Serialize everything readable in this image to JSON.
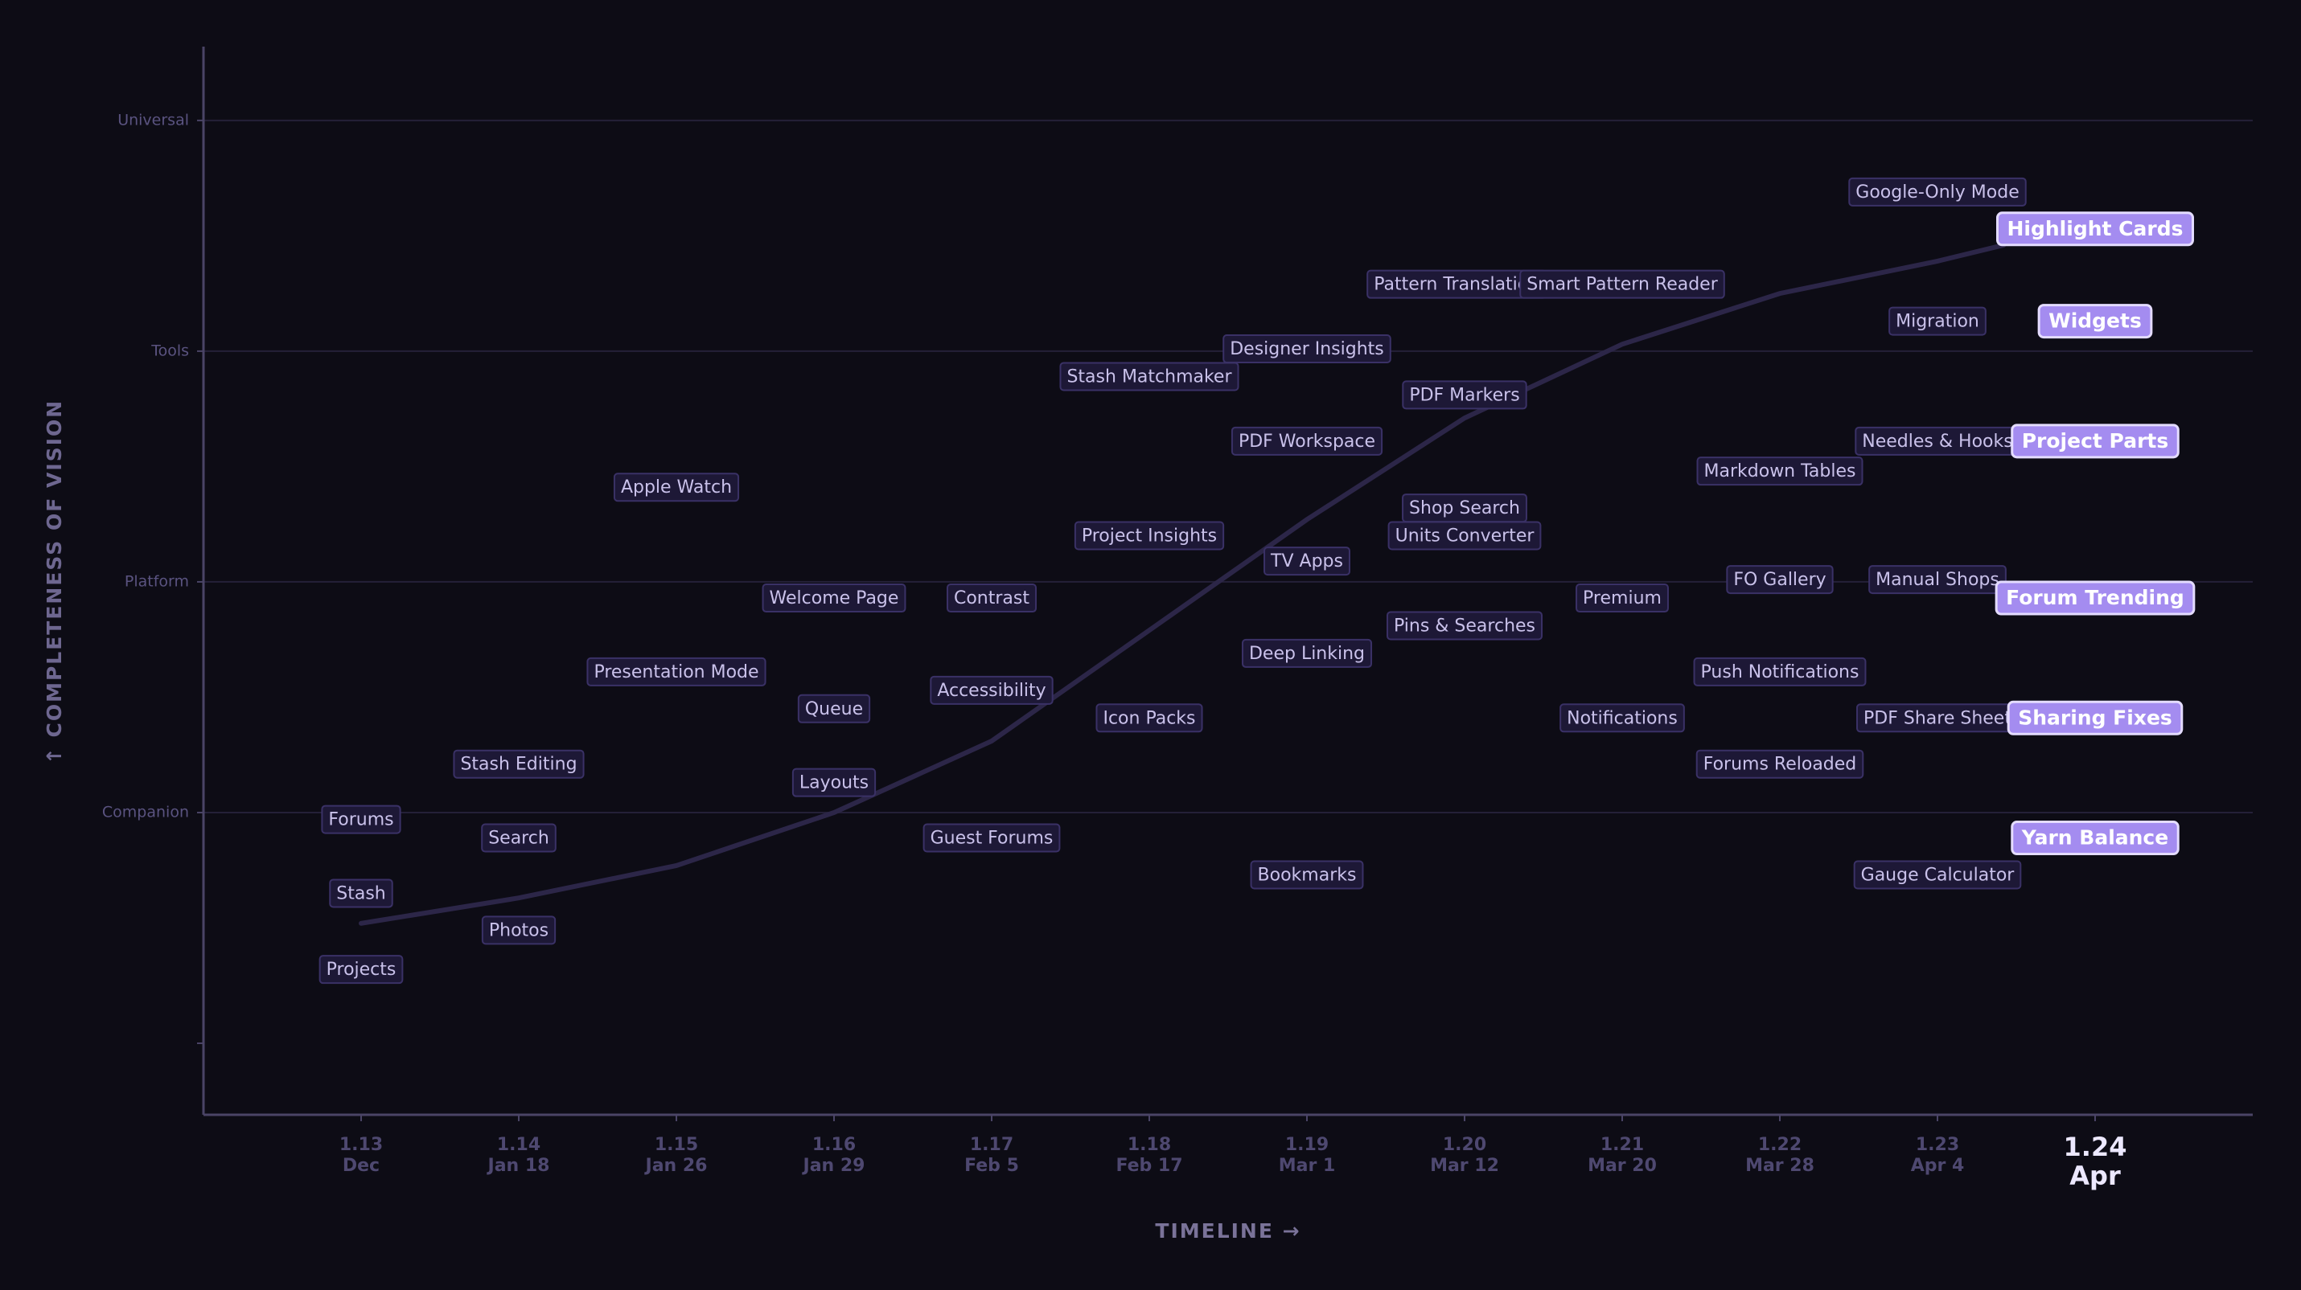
{
  "chart_data": {
    "type": "scatter",
    "x_label": "TIMELINE →",
    "y_label": "↑  COMPLETENESS  OF  VISION",
    "xlim": [
      -1,
      12
    ],
    "ylim": [
      -0.31,
      4.32
    ],
    "xticks": [
      {
        "value": 0,
        "label": "1.13"
      },
      {
        "value": 1,
        "label": "1.14"
      },
      {
        "value": 2,
        "label": "1.15"
      },
      {
        "value": 3,
        "label": "1.16"
      },
      {
        "value": 4,
        "label": "1.17"
      },
      {
        "value": 5,
        "label": "1.18"
      },
      {
        "value": 6,
        "label": "1.19"
      },
      {
        "value": 7,
        "label": "1.20"
      },
      {
        "value": 8,
        "label": "1.21"
      },
      {
        "value": 9,
        "label": "1.22"
      },
      {
        "value": 10,
        "label": "1.23"
      },
      {
        "value": 11,
        "label": "1.24"
      }
    ],
    "xtick_dates": [
      "Dec",
      "Jan 18",
      "Jan 26",
      "Jan 29",
      "Feb 5",
      "Feb 17",
      "Mar 1",
      "Mar 12",
      "Mar 20",
      "Mar 28",
      "Apr 4",
      "Apr"
    ],
    "current_release_index": 11,
    "yticks": [
      {
        "value": 0,
        "label": null
      },
      {
        "value": 1,
        "label": "Companion"
      },
      {
        "value": 2,
        "label": "Platform"
      },
      {
        "value": 3,
        "label": "Tools"
      },
      {
        "value": 4,
        "label": "Universal"
      }
    ],
    "grid": true,
    "trend": {
      "x": [
        0,
        1,
        2,
        3,
        4,
        5,
        6,
        7,
        8,
        9,
        10,
        10.42
      ],
      "y": [
        0.52,
        0.63,
        0.77,
        1.0,
        1.31,
        1.79,
        2.27,
        2.71,
        3.03,
        3.25,
        3.39,
        3.46
      ]
    },
    "points": [
      {
        "label": "Google-Only Mode",
        "x": 10,
        "y": 3.69
      },
      {
        "label": "Highlight Cards",
        "x": 11,
        "y": 3.53,
        "highlight": true
      },
      {
        "label": "Pattern Translation",
        "x": 6.95,
        "y": 3.29
      },
      {
        "label": "Smart Pattern Reader",
        "x": 8,
        "y": 3.29
      },
      {
        "label": "Migration",
        "x": 10,
        "y": 3.13
      },
      {
        "label": "Widgets",
        "x": 11,
        "y": 3.13,
        "highlight": true
      },
      {
        "label": "Designer Insights",
        "x": 6,
        "y": 3.01
      },
      {
        "label": "Stash Matchmaker",
        "x": 5,
        "y": 2.89
      },
      {
        "label": "PDF Markers",
        "x": 7,
        "y": 2.81
      },
      {
        "label": "PDF Workspace",
        "x": 6,
        "y": 2.61
      },
      {
        "label": "Needles & Hooks",
        "x": 10,
        "y": 2.61
      },
      {
        "label": "Project Parts",
        "x": 11,
        "y": 2.61,
        "highlight": true
      },
      {
        "label": "Markdown Tables",
        "x": 9,
        "y": 2.48
      },
      {
        "label": "Apple Watch",
        "x": 2,
        "y": 2.41
      },
      {
        "label": "Shop Search",
        "x": 7,
        "y": 2.32
      },
      {
        "label": "Project Insights",
        "x": 5,
        "y": 2.2
      },
      {
        "label": "Units Converter",
        "x": 7,
        "y": 2.2
      },
      {
        "label": "TV Apps",
        "x": 6,
        "y": 2.09
      },
      {
        "label": "FO Gallery",
        "x": 9,
        "y": 2.01
      },
      {
        "label": "Manual Shops",
        "x": 10,
        "y": 2.01
      },
      {
        "label": "Welcome Page",
        "x": 3,
        "y": 1.93
      },
      {
        "label": "Contrast",
        "x": 4,
        "y": 1.93
      },
      {
        "label": "Premium",
        "x": 8,
        "y": 1.93
      },
      {
        "label": "Forum Trending",
        "x": 11,
        "y": 1.93,
        "highlight": true
      },
      {
        "label": "Pins & Searches",
        "x": 7,
        "y": 1.81
      },
      {
        "label": "Deep Linking",
        "x": 6,
        "y": 1.69
      },
      {
        "label": "Presentation Mode",
        "x": 2,
        "y": 1.61
      },
      {
        "label": "Push Notifications",
        "x": 9,
        "y": 1.61
      },
      {
        "label": "Accessibility",
        "x": 4,
        "y": 1.53
      },
      {
        "label": "Queue",
        "x": 3,
        "y": 1.45
      },
      {
        "label": "Icon Packs",
        "x": 5,
        "y": 1.41
      },
      {
        "label": "Notifications",
        "x": 8,
        "y": 1.41
      },
      {
        "label": "PDF Share Sheet",
        "x": 10,
        "y": 1.41
      },
      {
        "label": "Sharing Fixes",
        "x": 11,
        "y": 1.41,
        "highlight": true
      },
      {
        "label": "Stash Editing",
        "x": 1,
        "y": 1.21
      },
      {
        "label": "Forums Reloaded",
        "x": 9,
        "y": 1.21
      },
      {
        "label": "Layouts",
        "x": 3,
        "y": 1.13
      },
      {
        "label": "Forums",
        "x": 0,
        "y": 0.97
      },
      {
        "label": "Search",
        "x": 1,
        "y": 0.89
      },
      {
        "label": "Guest Forums",
        "x": 4,
        "y": 0.89
      },
      {
        "label": "Yarn Balance",
        "x": 11,
        "y": 0.89,
        "highlight": true
      },
      {
        "label": "Bookmarks",
        "x": 6,
        "y": 0.73
      },
      {
        "label": "Gauge Calculator",
        "x": 10,
        "y": 0.73
      },
      {
        "label": "Stash",
        "x": 0,
        "y": 0.65
      },
      {
        "label": "Photos",
        "x": 1,
        "y": 0.49
      },
      {
        "label": "Projects",
        "x": 0,
        "y": 0.32
      }
    ]
  }
}
